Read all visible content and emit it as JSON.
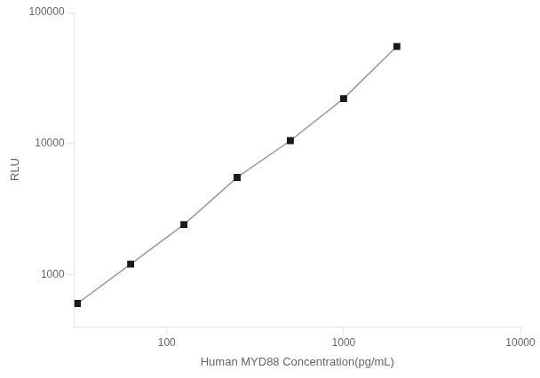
{
  "chart_data": {
    "type": "line",
    "xlabel": "Human MYD88 Concentration(pg/mL)",
    "ylabel": "RLU",
    "x": [
      31.25,
      62.5,
      125,
      250,
      500,
      1000,
      2000
    ],
    "series": [
      {
        "type": "line",
        "color": "#999999",
        "line_style": "solid",
        "values": [
          600,
          1200,
          2400,
          5500,
          10500,
          22000,
          55000
        ]
      },
      {
        "type": "scatter",
        "color": "#1a1a1a",
        "marker": "square",
        "values": [
          600,
          1200,
          2400,
          5500,
          10500,
          22000,
          55000
        ]
      }
    ],
    "xlim": [
      30,
      10000
    ],
    "ylim": [
      400,
      100000
    ],
    "xticks": [
      100,
      1000,
      10000
    ],
    "yticks": [
      1000,
      10000,
      100000
    ],
    "log": true,
    "grid": false
  }
}
